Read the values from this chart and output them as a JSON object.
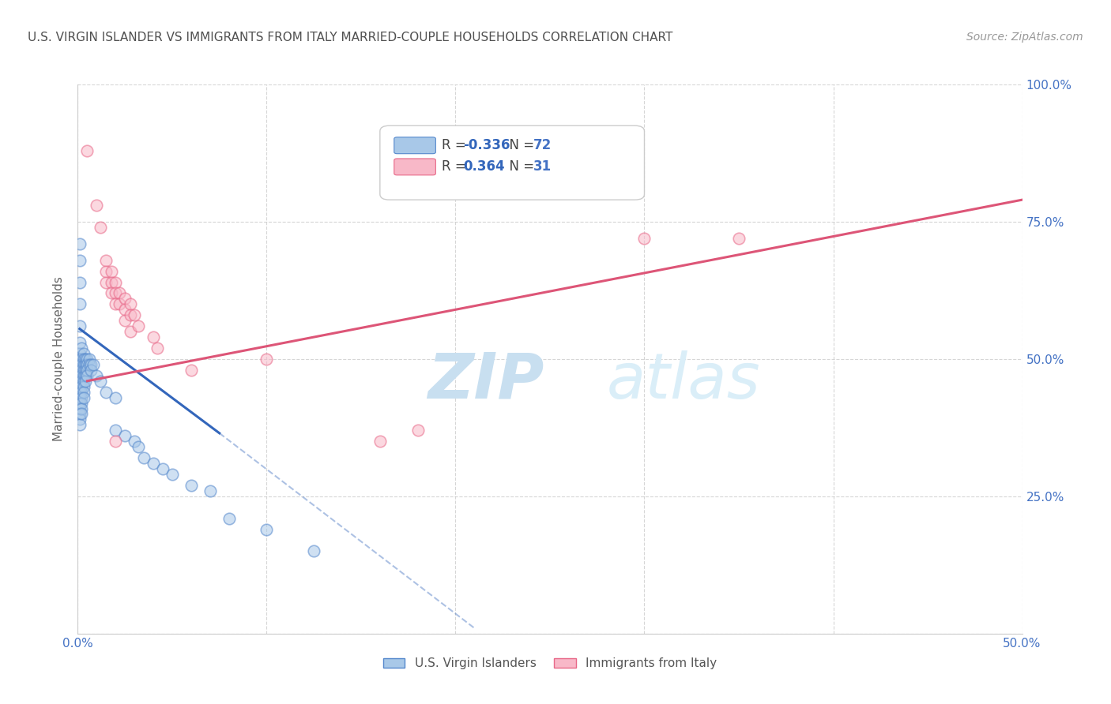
{
  "title": "U.S. VIRGIN ISLANDER VS IMMIGRANTS FROM ITALY MARRIED-COUPLE HOUSEHOLDS CORRELATION CHART",
  "source": "Source: ZipAtlas.com",
  "ylabel": "Married-couple Households",
  "xlim": [
    0.0,
    0.5
  ],
  "ylim": [
    0.0,
    1.0
  ],
  "ytick_vals": [
    0.0,
    0.25,
    0.5,
    0.75,
    1.0
  ],
  "ytick_labels_right": [
    "",
    "25.0%",
    "50.0%",
    "75.0%",
    "100.0%"
  ],
  "xtick_vals": [
    0.0,
    0.1,
    0.2,
    0.3,
    0.4,
    0.5
  ],
  "xtick_labels": [
    "0.0%",
    "",
    "",
    "",
    "",
    "50.0%"
  ],
  "blue_color": "#a8c8e8",
  "blue_edge_color": "#5588cc",
  "pink_color": "#f8b8c8",
  "pink_edge_color": "#e86888",
  "blue_line_color": "#3366bb",
  "pink_line_color": "#dd5577",
  "watermark_zip_color": "#c8dff0",
  "watermark_atlas_color": "#c8dff0",
  "grid_color": "#cccccc",
  "title_color": "#505050",
  "axis_tick_color": "#4472c4",
  "legend_R_color": "#3366bb",
  "legend_N_color": "#4472c4",
  "blue_dots": [
    [
      0.001,
      0.71
    ],
    [
      0.001,
      0.68
    ],
    [
      0.001,
      0.64
    ],
    [
      0.001,
      0.6
    ],
    [
      0.001,
      0.56
    ],
    [
      0.001,
      0.53
    ],
    [
      0.001,
      0.51
    ],
    [
      0.001,
      0.5
    ],
    [
      0.001,
      0.49
    ],
    [
      0.001,
      0.48
    ],
    [
      0.001,
      0.47
    ],
    [
      0.001,
      0.46
    ],
    [
      0.001,
      0.45
    ],
    [
      0.001,
      0.44
    ],
    [
      0.001,
      0.43
    ],
    [
      0.001,
      0.42
    ],
    [
      0.001,
      0.41
    ],
    [
      0.001,
      0.4
    ],
    [
      0.001,
      0.39
    ],
    [
      0.001,
      0.38
    ],
    [
      0.002,
      0.52
    ],
    [
      0.002,
      0.5
    ],
    [
      0.002,
      0.49
    ],
    [
      0.002,
      0.48
    ],
    [
      0.002,
      0.47
    ],
    [
      0.002,
      0.46
    ],
    [
      0.002,
      0.45
    ],
    [
      0.002,
      0.44
    ],
    [
      0.002,
      0.43
    ],
    [
      0.002,
      0.42
    ],
    [
      0.002,
      0.41
    ],
    [
      0.002,
      0.4
    ],
    [
      0.003,
      0.51
    ],
    [
      0.003,
      0.5
    ],
    [
      0.003,
      0.49
    ],
    [
      0.003,
      0.48
    ],
    [
      0.003,
      0.47
    ],
    [
      0.003,
      0.46
    ],
    [
      0.003,
      0.45
    ],
    [
      0.003,
      0.44
    ],
    [
      0.003,
      0.43
    ],
    [
      0.004,
      0.5
    ],
    [
      0.004,
      0.49
    ],
    [
      0.004,
      0.48
    ],
    [
      0.004,
      0.47
    ],
    [
      0.004,
      0.46
    ],
    [
      0.005,
      0.5
    ],
    [
      0.005,
      0.49
    ],
    [
      0.005,
      0.48
    ],
    [
      0.005,
      0.47
    ],
    [
      0.006,
      0.5
    ],
    [
      0.006,
      0.49
    ],
    [
      0.007,
      0.49
    ],
    [
      0.007,
      0.48
    ],
    [
      0.008,
      0.49
    ],
    [
      0.01,
      0.47
    ],
    [
      0.012,
      0.46
    ],
    [
      0.015,
      0.44
    ],
    [
      0.02,
      0.43
    ],
    [
      0.02,
      0.37
    ],
    [
      0.025,
      0.36
    ],
    [
      0.03,
      0.35
    ],
    [
      0.032,
      0.34
    ],
    [
      0.035,
      0.32
    ],
    [
      0.04,
      0.31
    ],
    [
      0.045,
      0.3
    ],
    [
      0.05,
      0.29
    ],
    [
      0.06,
      0.27
    ],
    [
      0.07,
      0.26
    ],
    [
      0.08,
      0.21
    ],
    [
      0.1,
      0.19
    ],
    [
      0.125,
      0.15
    ]
  ],
  "pink_dots": [
    [
      0.005,
      0.88
    ],
    [
      0.01,
      0.78
    ],
    [
      0.012,
      0.74
    ],
    [
      0.015,
      0.68
    ],
    [
      0.015,
      0.66
    ],
    [
      0.015,
      0.64
    ],
    [
      0.018,
      0.66
    ],
    [
      0.018,
      0.64
    ],
    [
      0.018,
      0.62
    ],
    [
      0.02,
      0.64
    ],
    [
      0.02,
      0.62
    ],
    [
      0.02,
      0.6
    ],
    [
      0.022,
      0.62
    ],
    [
      0.022,
      0.6
    ],
    [
      0.025,
      0.61
    ],
    [
      0.025,
      0.59
    ],
    [
      0.025,
      0.57
    ],
    [
      0.028,
      0.6
    ],
    [
      0.028,
      0.58
    ],
    [
      0.028,
      0.55
    ],
    [
      0.03,
      0.58
    ],
    [
      0.032,
      0.56
    ],
    [
      0.04,
      0.54
    ],
    [
      0.042,
      0.52
    ],
    [
      0.06,
      0.48
    ],
    [
      0.1,
      0.5
    ],
    [
      0.16,
      0.35
    ],
    [
      0.18,
      0.37
    ],
    [
      0.3,
      0.72
    ],
    [
      0.35,
      0.72
    ],
    [
      0.02,
      0.35
    ]
  ],
  "blue_line_solid": [
    [
      0.001,
      0.555
    ],
    [
      0.075,
      0.365
    ]
  ],
  "blue_line_dashed": [
    [
      0.075,
      0.365
    ],
    [
      0.21,
      0.01
    ]
  ],
  "pink_line": [
    [
      0.005,
      0.46
    ],
    [
      0.5,
      0.79
    ]
  ]
}
